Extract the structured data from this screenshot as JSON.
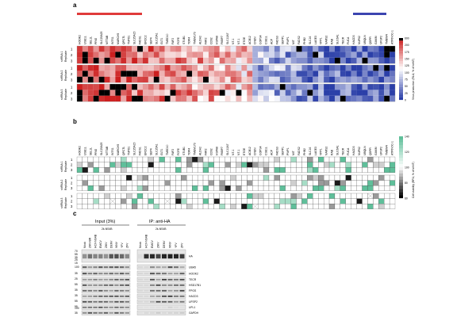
{
  "panels": {
    "a": {
      "label": "a",
      "genes_top": [
        "HOOK2",
        "USE1L",
        "SEL1L",
        "PRIG",
        "SLC25A25",
        "MTTAB",
        "INTS1",
        "MARCH5",
        "QPCTL",
        "TNPO1",
        "SLC25A15",
        "FADS1",
        "ERCC2",
        "SEP4",
        "SLC25A1",
        "GLT1",
        "TMED10",
        "FAF2",
        "FCFE",
        "STUB1",
        "TOR4",
        "TMEM173",
        "ALDH2",
        "FAR2",
        "CD92",
        "HSPA8",
        "FKBP7",
        "SLC12A7",
        "NT-1",
        "NT-1",
        "ETGE",
        "ACB12",
        "CNEN",
        "COPS4",
        "CSE1L",
        "ACP",
        "FADS3",
        "SEPP1",
        "PWP1",
        "MIT",
        "FADS2",
        "PHB2",
        "SLC16",
        "LAGE3",
        "VPP1",
        "NARS2",
        "RAB",
        "SLC6A1",
        "TECR",
        "FUCA",
        "HACD3",
        "NUP62",
        "UBQLN",
        "QDPR",
        "GAMM",
        "UFSP2",
        "TMBIM4",
        "ATP6V0C-1"
      ],
      "blocks": [
        {
          "name": "shRNA 1",
          "sub": "Replicate",
          "reps": [
            "1",
            "2",
            "3"
          ]
        },
        {
          "name": "shRNA 2",
          "sub": "Replicate",
          "reps": [
            "1",
            "2",
            "3"
          ]
        },
        {
          "name": "shRNA 3",
          "sub": "Replicate",
          "reps": [
            "1",
            "2",
            "3"
          ]
        }
      ],
      "colorbar_label": "Virus production (RLU, % of shNT)",
      "colorbar_ticks": [
        "600",
        "200",
        "175",
        "150",
        "125",
        "100",
        "75",
        "50",
        "25",
        "0"
      ],
      "colors": {
        "high": "#cc1f1f",
        "mid": "#ffffff",
        "low": "#2b3fa8"
      }
    },
    "b": {
      "label": "b",
      "blocks": [
        {
          "name": "shRNA 1",
          "sub": "Replicate",
          "reps": [
            "1",
            "2",
            "3"
          ]
        },
        {
          "name": "shRNA 2",
          "sub": "Replicate",
          "reps": [
            "1",
            "2",
            "3"
          ]
        },
        {
          "name": "shRNA 3",
          "sub": "Replicate",
          "reps": [
            "1",
            "2",
            "3"
          ]
        }
      ],
      "colorbar_label": "Cell viability (RFU, % of shNT)",
      "colorbar_ticks": [
        "140",
        "120",
        "100",
        "80",
        "60"
      ],
      "colors": {
        "high": "#5fbf9a",
        "mid": "#ffffff",
        "low": "#000000"
      }
    },
    "c": {
      "label": "c",
      "group_left": "Input (3%)",
      "group_right": "IP: anti-HA",
      "subgroup_left": "2k-NS4B",
      "subgroup_right": "2k-NS4B",
      "lanes_left": [
        "Mock",
        "ZIKV-BR",
        "HCV-NS4B",
        "EMCV",
        "ZIKV",
        "DENV",
        "WNV",
        "YFV",
        "ZFV"
      ],
      "lanes_right": [
        "Mock",
        "HCV-NS4B",
        "EMCV",
        "ZIKV",
        "DENV",
        "WNV",
        "YFV",
        "ZFV"
      ],
      "mw_markers": [
        "70",
        "55",
        "35",
        "25",
        "15",
        "100",
        "35",
        "25",
        "55",
        "35",
        "35",
        "55",
        "55",
        "100",
        "35"
      ],
      "blots": [
        "HA",
        "UBA5",
        "HOOK2",
        "TECR",
        "HSD17B1",
        "FPGS",
        "HACD3",
        "UFSP2",
        "UFL1",
        "GAPDH"
      ]
    }
  }
}
